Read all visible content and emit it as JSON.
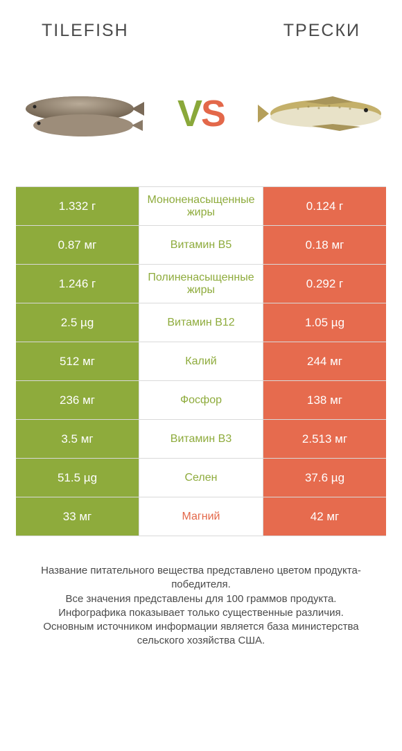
{
  "header": {
    "left_title": "TILEFISH",
    "right_title": "ТРЕСКИ"
  },
  "vs": {
    "v": "V",
    "s": "S"
  },
  "colors": {
    "left_bg": "#8eab3c",
    "right_bg": "#e66b4e",
    "left_text": "#8eab3c",
    "right_text": "#e3684a",
    "row_border": "#d9d9d9",
    "background": "#ffffff"
  },
  "table": {
    "rows": [
      {
        "left": "1.332 г",
        "label": "Мононенасыщенные жиры",
        "right": "0.124 г",
        "winner": "left"
      },
      {
        "left": "0.87 мг",
        "label": "Витамин B5",
        "right": "0.18 мг",
        "winner": "left"
      },
      {
        "left": "1.246 г",
        "label": "Полиненасыщенные жиры",
        "right": "0.292 г",
        "winner": "left"
      },
      {
        "left": "2.5 µg",
        "label": "Витамин B12",
        "right": "1.05 µg",
        "winner": "left"
      },
      {
        "left": "512 мг",
        "label": "Калий",
        "right": "244 мг",
        "winner": "left"
      },
      {
        "left": "236 мг",
        "label": "Фосфор",
        "right": "138 мг",
        "winner": "left"
      },
      {
        "left": "3.5 мг",
        "label": "Витамин B3",
        "right": "2.513 мг",
        "winner": "left"
      },
      {
        "left": "51.5 µg",
        "label": "Селен",
        "right": "37.6 µg",
        "winner": "left"
      },
      {
        "left": "33 мг",
        "label": "Магний",
        "right": "42 мг",
        "winner": "right"
      }
    ]
  },
  "footer": {
    "line1": "Название питательного вещества представлено цветом продукта-победителя.",
    "line2": "Все значения представлены для 100 граммов продукта.",
    "line3": "Инфографика показывает только существенные различия.",
    "line4": "Основным источником информации является база министерства сельского хозяйства США."
  }
}
